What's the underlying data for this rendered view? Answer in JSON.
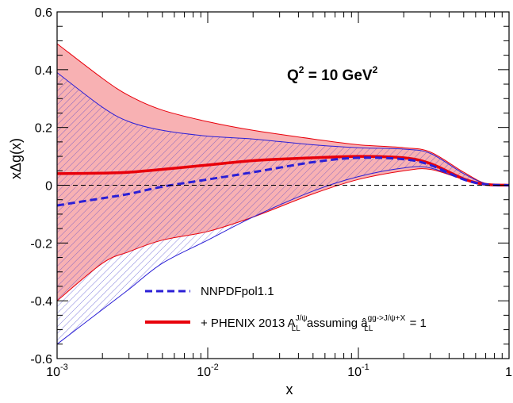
{
  "chart_data": {
    "type": "line",
    "xscale": "log",
    "xlim": [
      0.001,
      1
    ],
    "ylim": [
      -0.6,
      0.6
    ],
    "xlabel": "x",
    "ylabel": "xΔg(x)",
    "x_tick_labels": [
      {
        "base": "10",
        "exp": "-3"
      },
      {
        "base": "10",
        "exp": "-2"
      },
      {
        "base": "10",
        "exp": "-1"
      },
      {
        "base": "1",
        "exp": ""
      }
    ],
    "x_tick_values": [
      0.001,
      0.01,
      0.1,
      1
    ],
    "y_ticks": [
      -0.6,
      -0.4,
      -0.2,
      0,
      0.2,
      0.4,
      0.6
    ],
    "y_tick_labels": [
      "-0.6",
      "-0.4",
      "-0.2",
      "0",
      "0.2",
      "0.4",
      "0.6"
    ],
    "reference_line_y": 0,
    "annotation": {
      "base": "Q",
      "sup1": "2",
      "mid": " = 10 GeV",
      "sup2": "2"
    },
    "legend": {
      "nnpdf": "NNPDFpol1.1",
      "phenix_prefix": "+ PHENIX 2013 A",
      "phenix_a_sub": "LL",
      "phenix_a_sup": "J/ψ",
      "phenix_mid": " assuming â",
      "phenix_b_sub": "LL",
      "phenix_b_sup": "gg->J/ψ+X",
      "phenix_suffix": " = 1"
    },
    "series": [
      {
        "name": "NNPDFpol1.1",
        "color": "#2b1fd6",
        "style": "dashed",
        "x": [
          0.001,
          0.002,
          0.003,
          0.005,
          0.01,
          0.02,
          0.05,
          0.1,
          0.2,
          0.3,
          0.5,
          0.7,
          1.0
        ],
        "center": [
          -0.07,
          -0.045,
          -0.03,
          -0.005,
          0.02,
          0.045,
          0.08,
          0.095,
          0.09,
          0.07,
          0.02,
          0.003,
          0
        ],
        "lower": [
          -0.55,
          -0.43,
          -0.36,
          -0.27,
          -0.19,
          -0.11,
          -0.02,
          0.03,
          0.06,
          0.06,
          0.02,
          0.003,
          0
        ],
        "upper": [
          0.39,
          0.27,
          0.22,
          0.19,
          0.17,
          0.16,
          0.14,
          0.13,
          0.125,
          0.11,
          0.04,
          0.006,
          0
        ]
      },
      {
        "name": "+ PHENIX 2013",
        "color": "#e8000b",
        "band_color": "#f7a3a6",
        "style": "solid",
        "x": [
          0.001,
          0.002,
          0.003,
          0.005,
          0.01,
          0.02,
          0.05,
          0.1,
          0.2,
          0.3,
          0.5,
          0.7,
          1.0
        ],
        "center": [
          0.04,
          0.042,
          0.045,
          0.055,
          0.07,
          0.085,
          0.095,
          0.1,
          0.095,
          0.075,
          0.022,
          0.003,
          0
        ],
        "lower": [
          -0.4,
          -0.27,
          -0.23,
          -0.19,
          -0.16,
          -0.11,
          -0.03,
          0.02,
          0.05,
          0.055,
          0.02,
          0.003,
          0
        ],
        "upper": [
          0.49,
          0.37,
          0.31,
          0.26,
          0.22,
          0.19,
          0.16,
          0.14,
          0.13,
          0.115,
          0.045,
          0.006,
          0
        ]
      }
    ]
  }
}
